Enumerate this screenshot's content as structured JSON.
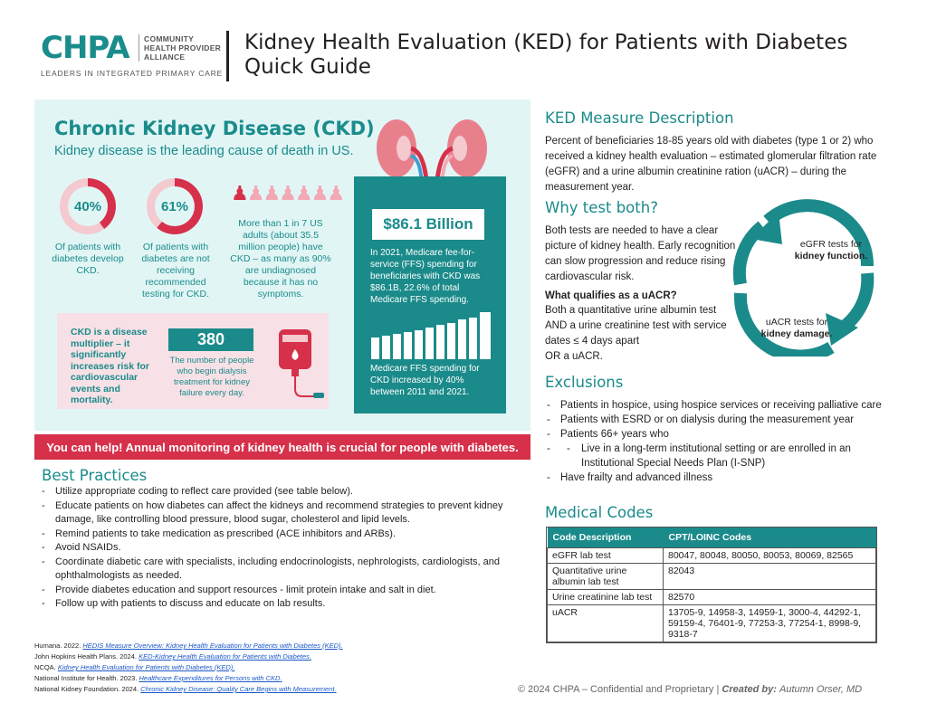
{
  "header": {
    "logo_text": "CHPA",
    "logo_side": [
      "COMMUNITY",
      "HEALTH PROVIDER",
      "ALLIANCE"
    ],
    "logo_tagline": "LEADERS IN INTEGRATED PRIMARY CARE",
    "title_line1": "Kidney Health Evaluation (KED) for Patients with Diabetes",
    "title_line2": "Quick Guide"
  },
  "infographic": {
    "title": "Chronic Kidney Disease (CKD)",
    "subtitle": "Kidney disease is the leading cause of death in US.",
    "stat1": {
      "value": "40%",
      "caption": "Of patients with diabetes develop CKD."
    },
    "stat2": {
      "value": "61%",
      "caption": "Of patients with diabetes are not receiving recommended testing for CKD."
    },
    "stat3": {
      "caption": "More than 1 in 7 US adults (about 35.5 million people) have CKD – as many as 90% are undiagnosed because it has no symptoms."
    },
    "spending": {
      "amount": "$86.1 Billion",
      "text": "In 2021, Medicare fee-for-service (FFS) spending for beneficiaries with CKD was $86.1B, 22.6% of total Medicare FFS spending.",
      "increase": "Medicare FFS spending for CKD increased by 40% between 2011 and 2021."
    },
    "multiplier": "CKD is a disease multiplier – it significantly increases risk for cardiovascular events and mortality.",
    "dialysis": {
      "value": "380",
      "caption": "The number of people who begin dialysis treatment for kidney failure every day."
    },
    "banner": "You can help! Annual monitoring of kidney health is crucial for people with diabetes."
  },
  "best_practices": {
    "heading": "Best Practices",
    "items": [
      "Utilize appropriate coding to reflect care provided (see table below).",
      "Educate patients on how diabetes can affect the kidneys and recommend strategies to prevent kidney damage, like controlling blood pressure, blood sugar, cholesterol and lipid levels.",
      "Remind patients to take medication as prescribed (ACE inhibitors and ARBs).",
      "Avoid NSAIDs.",
      "Coordinate diabetic care with specialists, including endocrinologists, nephrologists, cardiologists, and ophthalmologists as needed.",
      "Provide diabetes education and support resources - limit protein intake and salt in diet.",
      "Follow up with patients to discuss and educate on lab results."
    ]
  },
  "references": [
    {
      "prefix": "Humana. 2022. ",
      "link": "HEDIS Measure Overview: Kidney Health Evaluation for Patients with Diabetes (KED)."
    },
    {
      "prefix": "John Hopkins Health Plans. 2024. ",
      "link": "KED-Kidney Health Evaluation for Patients with Diabetes."
    },
    {
      "prefix": "NCQA. ",
      "link": "Kidney Health Evaluation for Patients with Diabetes (KED)."
    },
    {
      "prefix": "National Institute for Health. 2023. ",
      "link": "Healthcare Expenditures for Persons with CKD."
    },
    {
      "prefix": "National Kidney Foundation. 2024. ",
      "link": "Chronic Kidney Disease: Quality Care Begins with Measurement."
    }
  ],
  "ked": {
    "heading": "KED Measure Description",
    "text": "Percent of beneficiaries 18-85 years old with diabetes (type 1 or 2) who received a kidney health evaluation – estimated glomerular filtration rate (eGFR) and a urine albumin creatinine ration (uACR) – during the measurement year."
  },
  "why": {
    "heading": "Why test both?",
    "text": "Both tests are needed to have a clear picture of kidney health. Early recognition can slow progression and reduce rising cardiovascular risk.",
    "qualifies_heading": "What qualifies as a uACR?",
    "qualifies_text": "Both a quantitative urine albumin test AND a urine creatinine test with service dates ≤ 4 days apart",
    "qualifies_or": "OR a uACR.",
    "egfr_pre": "eGFR tests for",
    "egfr_bold": "kidney function.",
    "uacr_pre": "uACR tests for",
    "uacr_bold": "kidney damage."
  },
  "exclusions": {
    "heading": "Exclusions",
    "items": [
      "Patients in hospice, using hospice services or receiving palliative care",
      "Patients with ESRD or on dialysis during the measurement year",
      "Patients 66+ years who"
    ],
    "sub_item": "Live in a long-term institutional setting or are enrolled in an Institutional Special Needs Plan (I-SNP)",
    "last_item": "Have frailty and advanced illness"
  },
  "codes": {
    "heading": "Medical Codes",
    "col1": "Code Description",
    "col2": "CPT/LOINC Codes",
    "rows": [
      {
        "desc": "eGFR lab test",
        "codes": "80047, 80048, 80050, 80053, 80069, 82565"
      },
      {
        "desc": "Quantitative urine albumin lab test",
        "codes": "82043"
      },
      {
        "desc": "Urine creatinine lab test",
        "codes": "82570"
      },
      {
        "desc": "uACR",
        "codes": "13705-9, 14958-3, 14959-1, 3000-4, 44292-1, 59159-4, 76401-9, 77253-3, 77254-1, 8998-9, 9318-7"
      }
    ]
  },
  "footer": {
    "copyright": "© 2024 CHPA – Confidential and Proprietary |",
    "created_label": "Created by:",
    "author": "Autumn Orser, MD"
  },
  "colors": {
    "teal": "#1b8a8a",
    "red": "#d6304a",
    "pink": "#f7e1e6",
    "panel": "#e2f5f5"
  },
  "icons": [
    "kidneys-icon",
    "person-icon",
    "iv-bag-icon",
    "cycle-arrows-icon"
  ]
}
